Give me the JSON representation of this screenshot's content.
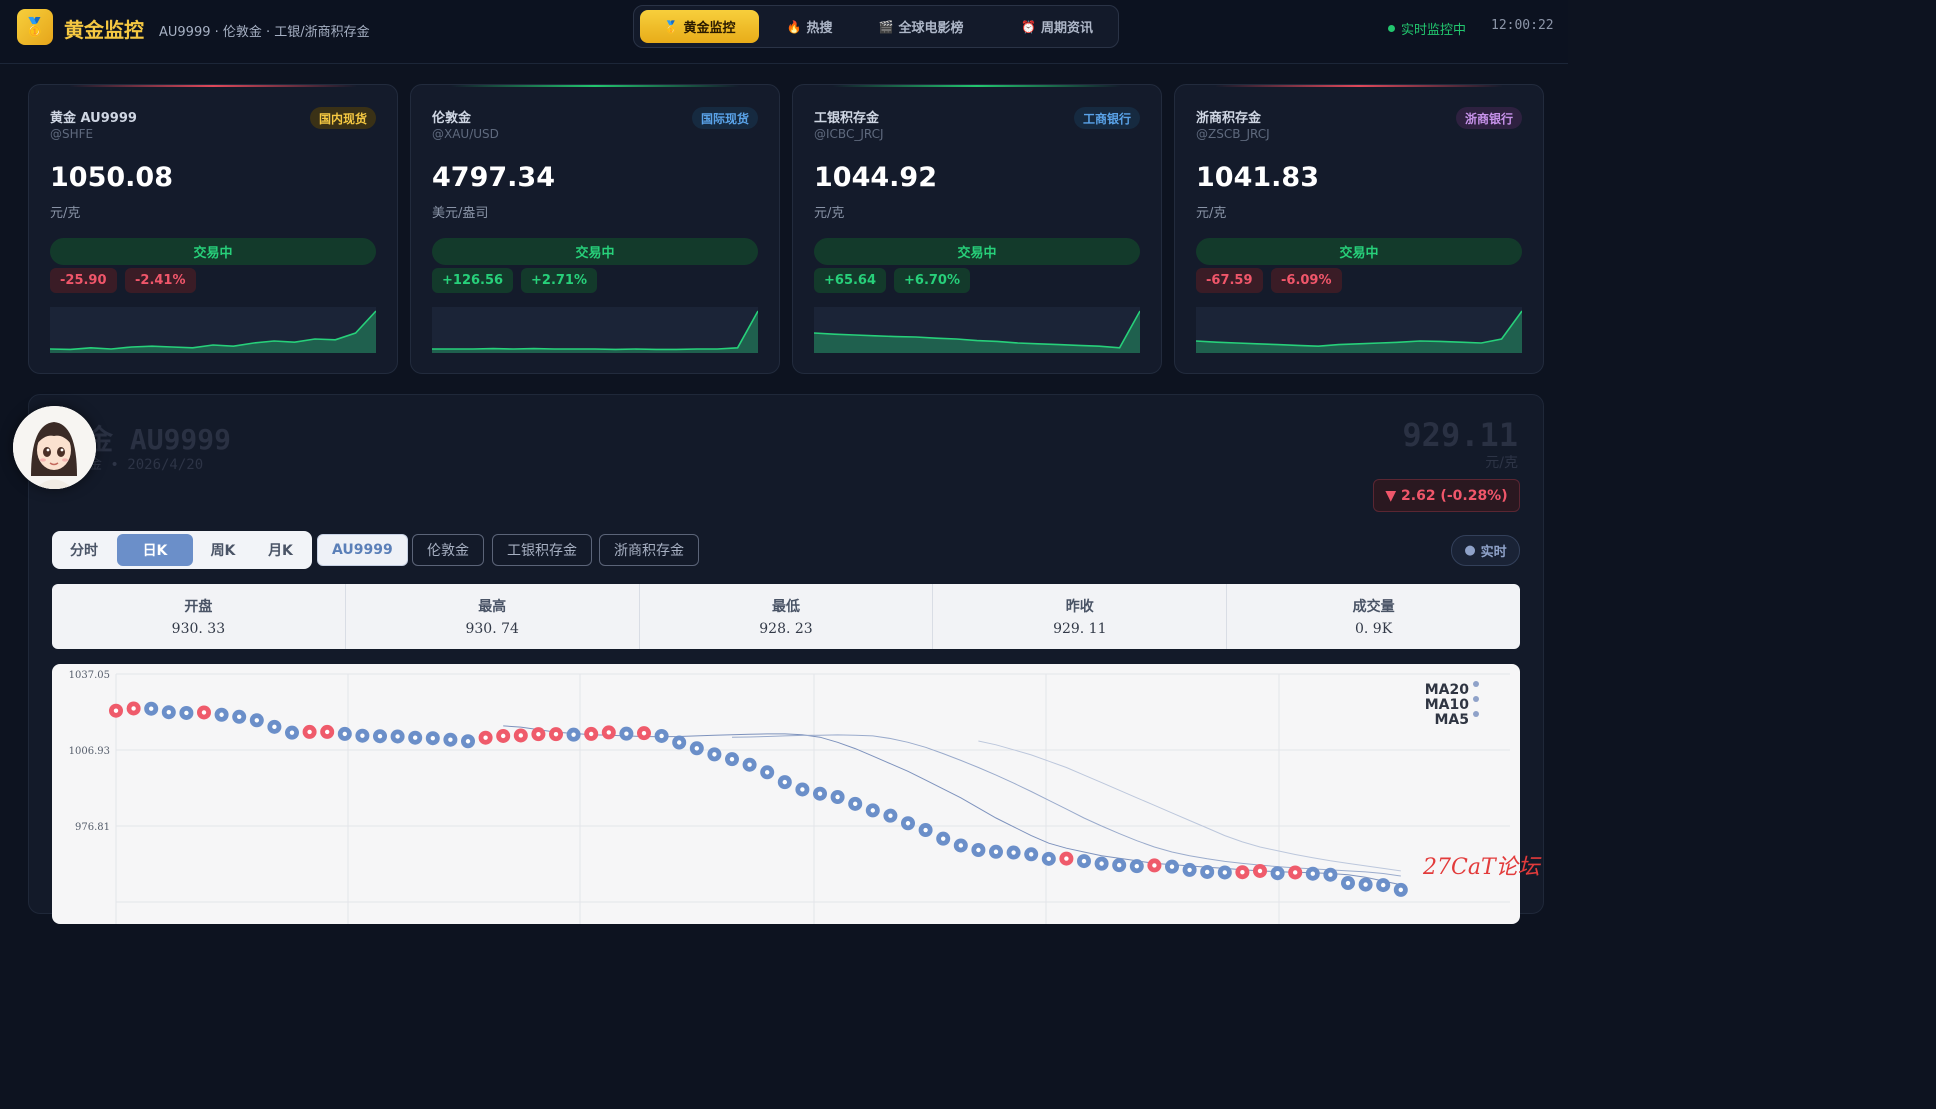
{
  "header": {
    "brand": "黄金监控",
    "subtitle": "AU9999 · 伦敦金 · 工银/浙商积存金",
    "logo_icon": "medal-icon",
    "nav": [
      {
        "label": "黄金监控",
        "icon": "🥇",
        "active": true
      },
      {
        "label": "热搜",
        "icon": "🔥",
        "active": false
      },
      {
        "label": "全球电影榜",
        "icon": "🎬",
        "active": false
      },
      {
        "label": "周期资讯",
        "icon": "⏰",
        "active": false
      }
    ],
    "live_label": "实时监控中",
    "clock": "12:00:22"
  },
  "cards": [
    {
      "name": "黄金 AU9999",
      "code": "@SHFE",
      "badge": "国内现货",
      "badge_color": "#f5c842",
      "badge_bg": "#3a3116",
      "price": "1050.08",
      "unit": "元/克",
      "status": "交易中",
      "change": "-25.90",
      "change_pct": "-2.41%",
      "direction": "down",
      "topline": "#e0485a",
      "spark": [
        0.05,
        0.04,
        0.08,
        0.05,
        0.1,
        0.12,
        0.1,
        0.08,
        0.15,
        0.12,
        0.2,
        0.25,
        0.22,
        0.3,
        0.28,
        0.45,
        1.0
      ]
    },
    {
      "name": "伦敦金",
      "code": "@XAU/USD",
      "badge": "国际现货",
      "badge_color": "#5aa3e8",
      "badge_bg": "#162a40",
      "price": "4797.34",
      "unit": "美元/盎司",
      "status": "交易中",
      "change": "+126.56",
      "change_pct": "+2.71%",
      "direction": "up",
      "topline": "#22c66e",
      "spark": [
        0.05,
        0.05,
        0.05,
        0.06,
        0.05,
        0.06,
        0.05,
        0.05,
        0.05,
        0.04,
        0.05,
        0.04,
        0.04,
        0.05,
        0.05,
        0.08,
        1.0
      ]
    },
    {
      "name": "工银积存金",
      "code": "@ICBC_JRCJ",
      "badge": "工商银行",
      "badge_color": "#5aa3e8",
      "badge_bg": "#162a40",
      "price": "1044.92",
      "unit": "元/克",
      "status": "交易中",
      "change": "+65.64",
      "change_pct": "+6.70%",
      "direction": "up",
      "topline": "#22c66e",
      "spark": [
        0.45,
        0.42,
        0.4,
        0.38,
        0.36,
        0.35,
        0.32,
        0.3,
        0.26,
        0.24,
        0.2,
        0.18,
        0.16,
        0.14,
        0.12,
        0.08,
        1.0
      ]
    },
    {
      "name": "浙商积存金",
      "code": "@ZSCB_JRCJ",
      "badge": "浙商银行",
      "badge_color": "#c792ea",
      "badge_bg": "#2e2140",
      "price": "1041.83",
      "unit": "元/克",
      "status": "交易中",
      "change": "-67.59",
      "change_pct": "-6.09%",
      "direction": "down",
      "topline": "#e0485a",
      "spark": [
        0.25,
        0.22,
        0.2,
        0.18,
        0.16,
        0.14,
        0.12,
        0.16,
        0.18,
        0.2,
        0.22,
        0.25,
        0.24,
        0.22,
        0.2,
        0.3,
        1.0
      ]
    }
  ],
  "detail": {
    "title": "金 AU9999",
    "date": "金  •  2026/4/20",
    "price": "929.11",
    "unit": "元/克",
    "change": "▼ 2.62 (-0.28%)",
    "avatar_icon": "avatar-girl-icon"
  },
  "periods": [
    {
      "label": "分时",
      "active": false
    },
    {
      "label": "日K",
      "active": true
    },
    {
      "label": "周K",
      "active": false
    },
    {
      "label": "月K",
      "active": false
    }
  ],
  "symbols": [
    {
      "label": "AU9999",
      "active": true
    },
    {
      "label": "伦敦金",
      "active": false
    },
    {
      "label": "工银积存金",
      "active": false
    },
    {
      "label": "浙商积存金",
      "active": false
    }
  ],
  "realtime_label": "实时",
  "stats": [
    {
      "label": "开盘",
      "value": "930. 33"
    },
    {
      "label": "最高",
      "value": "930. 74"
    },
    {
      "label": "最低",
      "value": "928. 23"
    },
    {
      "label": "昨收",
      "value": "929. 11"
    },
    {
      "label": "成交量",
      "value": "0. 9K"
    }
  ],
  "chart_data": {
    "type": "scatter",
    "y_ticks": [
      "1037.05",
      "1006.93",
      "976.81"
    ],
    "ylim": [
      960,
      1040
    ],
    "legend": [
      "MA20",
      "MA10",
      "MA5"
    ],
    "legend_position": "top-right",
    "up_color": "#ef5b6b",
    "down_color": "#6b8fc9",
    "series": [
      {
        "values": [
          1022.5,
          1023.4,
          1023.3,
          1021.9,
          1021.6,
          1021.8,
          1020.9,
          1020.1,
          1018.7,
          1016.1,
          1013.8,
          1014.1,
          1014.1,
          1013.3,
          1012.6,
          1012.4,
          1012.3,
          1011.8,
          1011.6,
          1011.0,
          1010.4,
          1011.8,
          1012.5,
          1012.7,
          1013.2,
          1013.2,
          1013.0,
          1013.3,
          1013.9,
          1013.4,
          1013.6,
          1012.5,
          1009.9,
          1007.6,
          1005.2,
          1003.3,
          1001.1,
          998.1,
          994.2,
          991.3,
          989.6,
          988.3,
          985.6,
          983.0,
          980.9,
          977.9,
          975.2,
          971.8,
          969.1,
          967.3,
          966.6,
          966.3,
          965.6,
          963.8,
          963.9,
          962.9,
          961.9,
          961.3,
          960.9,
          961.2,
          960.7,
          959.4,
          958.6,
          958.4,
          958.5,
          959.0,
          958.1,
          958.4,
          957.9,
          957.5,
          954.2,
          953.6,
          953.4,
          951.5
        ]
      }
    ],
    "ma_lines": [
      {
        "name": "MA5",
        "values": [
          1016.5,
          1016.0,
          1015.0,
          1014.0,
          1013.5,
          1013.0,
          1012.8,
          1012.5,
          1012.3,
          1012.2,
          1012.3,
          1012.5,
          1012.8,
          1013.0,
          1013.2,
          1013.3,
          1013.3,
          1013.0,
          1012.0,
          1010.0,
          1007.5,
          1004.5,
          1001.5,
          998.5,
          995.0,
          991.5,
          988.0,
          984.0,
          980.0,
          976.5,
          973.0,
          970.0,
          968.0,
          966.5,
          965.0,
          964.0,
          963.0,
          962.0,
          961.5,
          961.0,
          960.5,
          960.0,
          959.5,
          959.0,
          958.7,
          958.5,
          958.3,
          958.0,
          957.5,
          956.5,
          955.0,
          953.5
        ]
      },
      {
        "name": "MA10",
        "values": [
          1012.0,
          1012.1,
          1012.3,
          1012.5,
          1012.7,
          1012.8,
          1012.9,
          1012.8,
          1012.5,
          1011.5,
          1010.0,
          1008.0,
          1005.5,
          1002.8,
          1000.0,
          997.0,
          993.8,
          990.5,
          987.0,
          983.5,
          980.0,
          976.8,
          973.8,
          971.0,
          968.5,
          966.5,
          965.0,
          963.8,
          962.8,
          962.0,
          961.3,
          960.7,
          960.2,
          959.8,
          959.4,
          959.0,
          958.6,
          958.0,
          957.0
        ]
      },
      {
        "name": "MA20",
        "values": [
          1010.5,
          1009.0,
          1007.0,
          1005.0,
          1002.5,
          1000.0,
          997.0,
          994.0,
          991.0,
          988.0,
          985.0,
          982.0,
          979.0,
          976.0,
          973.0,
          970.5,
          968.5,
          967.0,
          965.5,
          964.2,
          963.0,
          962.0,
          961.0,
          960.0,
          959.0
        ]
      }
    ]
  },
  "watermark": "27CaT论坛"
}
